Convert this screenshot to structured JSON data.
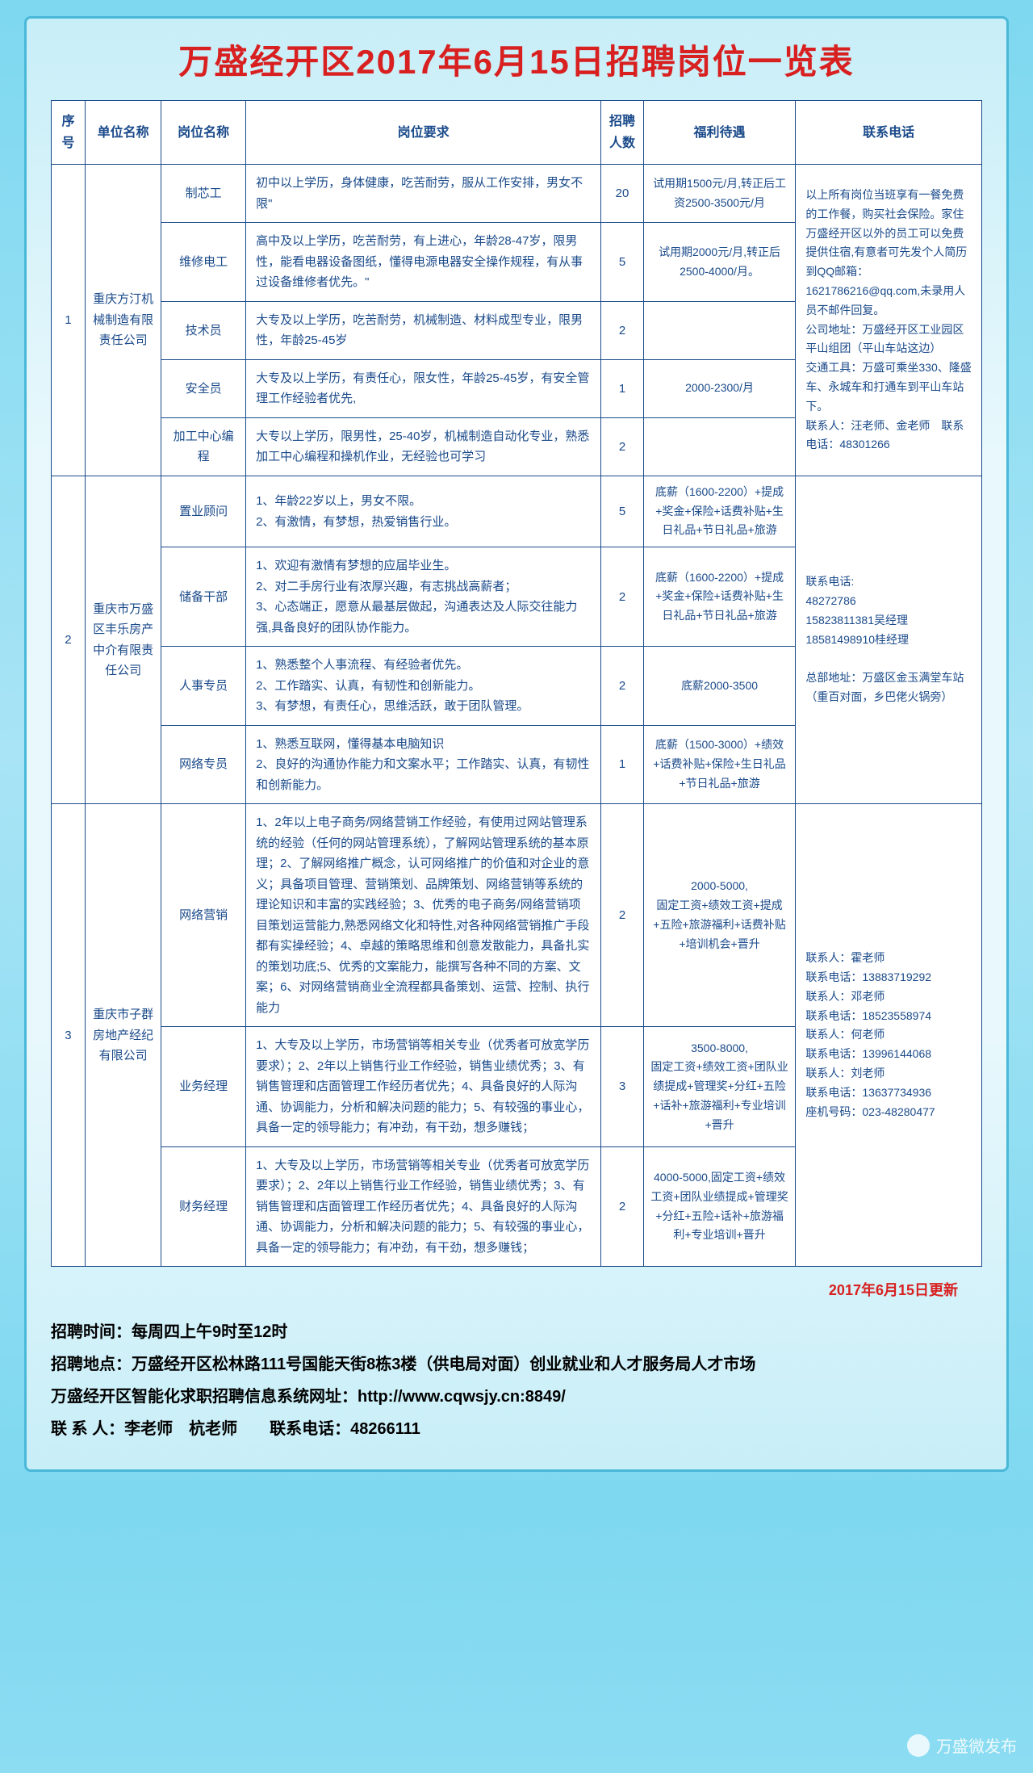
{
  "title": "万盛经开区2017年6月15日招聘岗位一览表",
  "headers": [
    "序号",
    "单位名称",
    "岗位名称",
    "岗位要求",
    "招聘人数",
    "福利待遇",
    "联系电话"
  ],
  "groups": [
    {
      "seq": "1",
      "company": "重庆方汀机械制造有限责任公司",
      "contact": "以上所有岗位当班享有一餐免费的工作餐，购买社会保险。家住万盛经开区以外的员工可以免费提供住宿,有意者可先发个人简历到QQ邮箱：1621786216@qq.com,未录用人员不邮件回复。\n公司地址：万盛经开区工业园区平山组团（平山车站这边）\n交通工具：万盛可乘坐330、隆盛车、永城车和打通车到平山车站下。\n联系人：汪老师、金老师　联系电话：48301266",
      "rows": [
        {
          "pos": "制芯工",
          "req": "初中以上学历，身体健康，吃苦耐劳，服从工作安排，男女不限\"",
          "num": "20",
          "benefit": "试用期1500元/月,转正后工资2500-3500元/月"
        },
        {
          "pos": "维修电工",
          "req": "高中及以上学历，吃苦耐劳，有上进心，年龄28-47岁，限男性，能看电器设备图纸，懂得电源电器安全操作规程，有从事过设备维修者优先。\"",
          "num": "5",
          "benefit": "试用期2000元/月,转正后2500-4000/月。"
        },
        {
          "pos": "技术员",
          "req": "大专及以上学历，吃苦耐劳，机械制造、材料成型专业，限男性，年龄25-45岁",
          "num": "2",
          "benefit": ""
        },
        {
          "pos": "安全员",
          "req": "大专及以上学历，有责任心，限女性，年龄25-45岁，有安全管理工作经验者优先,",
          "num": "1",
          "benefit": "2000-2300/月"
        },
        {
          "pos": "加工中心编程",
          "req": "大专以上学历，限男性，25-40岁，机械制造自动化专业，熟悉加工中心编程和操机作业，无经验也可学习",
          "num": "2",
          "benefit": ""
        }
      ]
    },
    {
      "seq": "2",
      "company": "重庆市万盛区丰乐房产中介有限责任公司",
      "contact": "联系电话:\n48272786\n15823811381吴经理\n18581498910桂经理\n\n总部地址：万盛区金玉满堂车站（重百对面，乡巴佬火锅旁）",
      "rows": [
        {
          "pos": "置业顾问",
          "req": "1、年龄22岁以上，男女不限。\n2、有激情，有梦想，热爱销售行业。",
          "num": "5",
          "benefit": "底薪（1600-2200）+提成+奖金+保险+话费补贴+生日礼品+节日礼品+旅游"
        },
        {
          "pos": "储备干部",
          "req": "1、欢迎有激情有梦想的应届毕业生。\n2、对二手房行业有浓厚兴趣，有志挑战高薪者；\n3、心态端正，愿意从最基层做起，沟通表达及人际交往能力强,具备良好的团队协作能力。",
          "num": "2",
          "benefit": "底薪（1600-2200）+提成+奖金+保险+话费补贴+生日礼品+节日礼品+旅游"
        },
        {
          "pos": "人事专员",
          "req": "1、熟悉整个人事流程、有经验者优先。\n2、工作踏实、认真，有韧性和创新能力。\n3、有梦想，有责任心，思维活跃，敢于团队管理。",
          "num": "2",
          "benefit": "底薪2000-3500"
        },
        {
          "pos": "网络专员",
          "req": "1、熟悉互联网，懂得基本电脑知识\n2、良好的沟通协作能力和文案水平；工作踏实、认真，有韧性和创新能力。",
          "num": "1",
          "benefit": "底薪（1500-3000）+绩效+话费补贴+保险+生日礼品+节日礼品+旅游"
        }
      ]
    },
    {
      "seq": "3",
      "company": "重庆市子群房地产经纪有限公司",
      "contact": "联系人：霍老师\n联系电话：13883719292\n联系人：邓老师\n联系电话：18523558974\n联系人：何老师\n联系电话：13996144068\n联系人：刘老师\n联系电话：13637734936\n座机号码：023-48280477",
      "rows": [
        {
          "pos": "网络营销",
          "req": "1、2年以上电子商务/网络营销工作经验，有使用过网站管理系统的经验（任何的网站管理系统），了解网站管理系统的基本原理；2、了解网络推广概念，认可网络推广的价值和对企业的意义；具备项目管理、营销策划、品牌策划、网络营销等系统的理论知识和丰富的实践经验；3、优秀的电子商务/网络营销项目策划运营能力,熟悉网络文化和特性,对各种网络营销推广手段都有实操经验；4、卓越的策略思维和创意发散能力，具备扎实的策划功底;5、优秀的文案能力，能撰写各种不同的方案、文案；6、对网络营销商业全流程都具备策划、运营、控制、执行能力",
          "num": "2",
          "benefit": "2000-5000,\n固定工资+绩效工资+提成+五险+旅游福利+话费补贴+培训机会+晋升"
        },
        {
          "pos": "业务经理",
          "req": "1、大专及以上学历，市场营销等相关专业（优秀者可放宽学历要求）；2、2年以上销售行业工作经验，销售业绩优秀；3、有销售管理和店面管理工作经历者优先；4、具备良好的人际沟通、协调能力，分析和解决问题的能力；5、有较强的事业心，具备一定的领导能力；有冲劲，有干劲，想多赚钱；",
          "num": "3",
          "benefit": "3500-8000,\n固定工资+绩效工资+团队业绩提成+管理奖+分红+五险+话补+旅游福利+专业培训+晋升"
        },
        {
          "pos": "财务经理",
          "req": "1、大专及以上学历，市场营销等相关专业（优秀者可放宽学历要求）；2、2年以上销售行业工作经验，销售业绩优秀；3、有销售管理和店面管理工作经历者优先；4、具备良好的人际沟通、协调能力，分析和解决问题的能力；5、有较强的事业心，具备一定的领导能力；有冲劲，有干劲，想多赚钱；",
          "num": "2",
          "benefit": "4000-5000,固定工资+绩效工资+团队业绩提成+管理奖+分红+五险+话补+旅游福利+专业培训+晋升"
        }
      ]
    }
  ],
  "update": "2017年6月15日更新",
  "footer": {
    "time": "招聘时间：每周四上午9时至12时",
    "place": "招聘地点：万盛经开区松林路111号国能天街8栋3楼（供电局对面）创业就业和人才服务局人才市场",
    "url": "万盛经开区智能化求职招聘信息系统网址：http://www.cqwsjy.cn:8849/",
    "contact": "联 系 人：李老师　杭老师　　联系电话：48266111"
  },
  "watermark": "万盛微发布"
}
